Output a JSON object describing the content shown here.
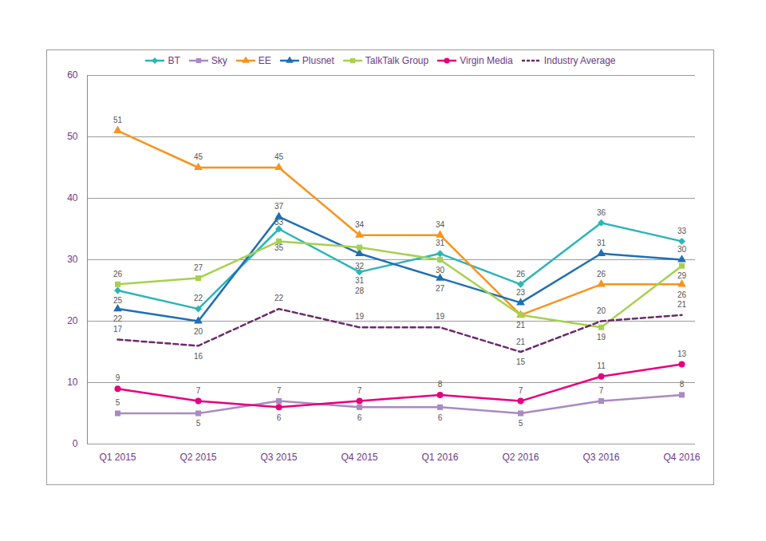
{
  "chart_data": {
    "type": "line",
    "categories": [
      "Q1 2015",
      "Q2 2015",
      "Q3 2015",
      "Q4 2015",
      "Q1 2016",
      "Q2 2016",
      "Q3 2016",
      "Q4 2016"
    ],
    "series": [
      {
        "name": "BT",
        "color": "#2cb5b5",
        "marker": "diamond",
        "values": [
          25,
          22,
          35,
          28,
          31,
          26,
          36,
          33
        ]
      },
      {
        "name": "Sky",
        "color": "#a98ac2",
        "marker": "square",
        "values": [
          5,
          5,
          7,
          6,
          6,
          5,
          7,
          8
        ]
      },
      {
        "name": "EE",
        "color": "#f7941d",
        "marker": "triangle",
        "values": [
          51,
          45,
          45,
          34,
          34,
          21,
          26,
          26
        ]
      },
      {
        "name": "Plusnet",
        "color": "#1f6fb4",
        "marker": "triangle",
        "values": [
          22,
          20,
          37,
          31,
          27,
          23,
          31,
          30
        ]
      },
      {
        "name": "TalkTalk Group",
        "color": "#a6d14e",
        "marker": "square",
        "values": [
          26,
          27,
          33,
          32,
          30,
          21,
          19,
          29
        ]
      },
      {
        "name": "Virgin Media",
        "color": "#e6007e",
        "marker": "circle",
        "values": [
          9,
          7,
          6,
          7,
          8,
          7,
          11,
          13
        ]
      },
      {
        "name": "Industry Average",
        "color": "#6b2a6b",
        "line_style": "dashed",
        "values": [
          17,
          16,
          22,
          19,
          19,
          15,
          20,
          21
        ]
      }
    ],
    "ylim": [
      0,
      60
    ],
    "yticks": [
      0,
      10,
      20,
      30,
      40,
      50,
      60
    ],
    "grid": true,
    "legend": "top",
    "data_labels": true
  }
}
